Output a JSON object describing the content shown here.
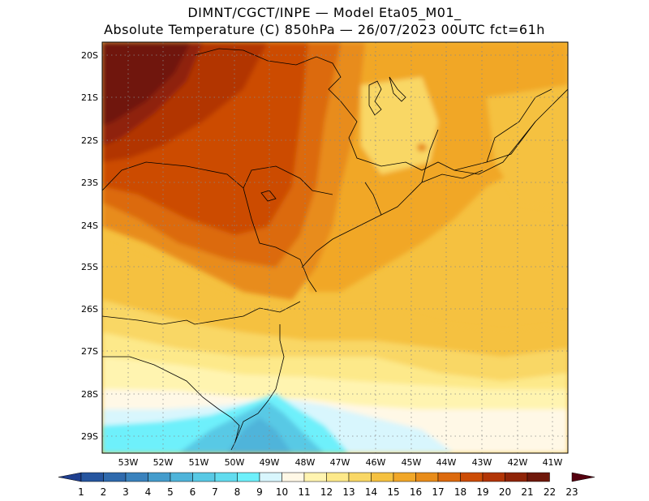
{
  "title_line1": "DIMNT/CGCT/INPE  —   Model Eta05_M01_",
  "title_line2": "Absolute Temperature (C) 850hPa —  26/07/2023 00UTC fct=61h",
  "lat_labels": [
    "20S",
    "21S",
    "22S",
    "23S",
    "24S",
    "25S",
    "26S",
    "27S",
    "28S",
    "29S"
  ],
  "lon_labels": [
    "53W",
    "52W",
    "51W",
    "50W",
    "49W",
    "48W",
    "47W",
    "46W",
    "45W",
    "44W",
    "43W",
    "42W",
    "41W"
  ],
  "colorbar": {
    "labels": [
      "1",
      "2",
      "3",
      "4",
      "5",
      "6",
      "7",
      "8",
      "9",
      "10",
      "11",
      "12",
      "13",
      "14",
      "15",
      "16",
      "17",
      "18",
      "19",
      "20",
      "21",
      "22",
      "23"
    ],
    "colors": [
      "#1f3f8f",
      "#26559f",
      "#2f6aad",
      "#3a82bd",
      "#449ccc",
      "#4fb4da",
      "#59c9e5",
      "#62dcef",
      "#6ef0fb",
      "#d8f6fd",
      "#fff8e6",
      "#fff4b0",
      "#fde98a",
      "#f9d765",
      "#f5c140",
      "#f1a728",
      "#e88c1a",
      "#dc6a0e",
      "#cc4c05",
      "#b23506",
      "#8f2408",
      "#6f180b",
      "#55000f"
    ]
  }
}
